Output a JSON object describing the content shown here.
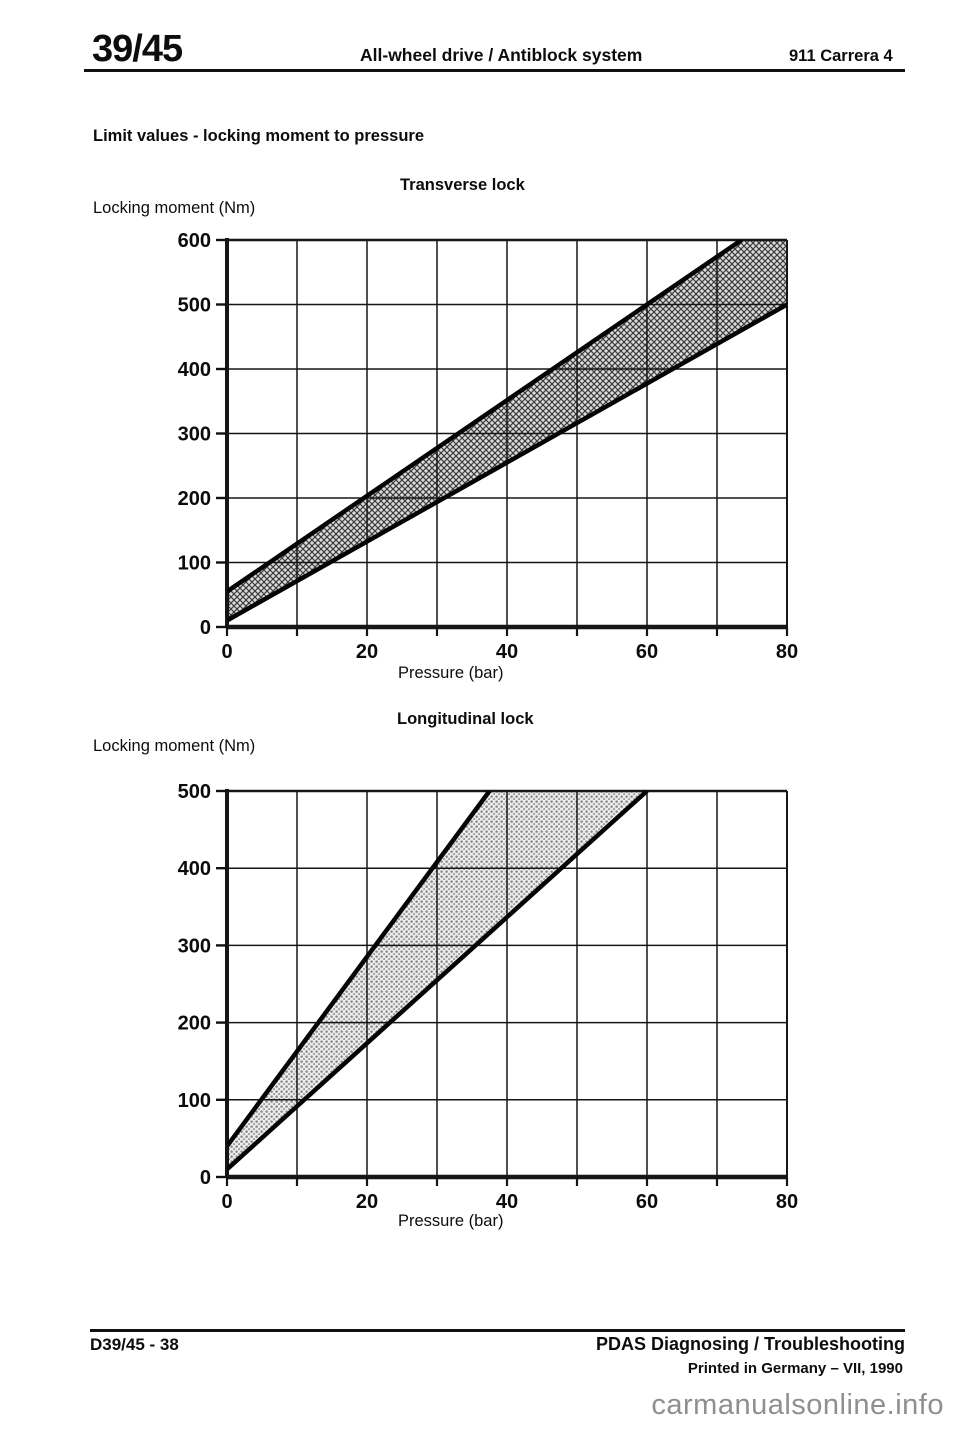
{
  "header": {
    "section_number": "39/45",
    "title": "All-wheel drive / Antiblock system",
    "model": "911 Carrera 4"
  },
  "heading": "Limit values - locking moment to pressure",
  "chart_data": [
    {
      "type": "area",
      "title": "Transverse lock",
      "ylabel": "Locking moment (Nm)",
      "xlabel": "Pressure (bar)",
      "xlim": [
        0,
        80
      ],
      "ylim": [
        0,
        600
      ],
      "xticks": [
        0,
        20,
        40,
        60,
        80
      ],
      "yticks": [
        0,
        100,
        200,
        300,
        400,
        500,
        600
      ],
      "xgrid_step": 10,
      "ygrid_step": 100,
      "grid": true,
      "legend": "none",
      "band": {
        "description": "permissible locking-moment band (hatched)",
        "fill_style": "crosshatch",
        "lower_edge": [
          [
            0,
            10
          ],
          [
            80,
            500
          ]
        ],
        "upper_edge": [
          [
            0,
            55
          ],
          [
            73.5,
            600
          ]
        ],
        "polygon": [
          [
            0,
            10
          ],
          [
            80,
            500
          ],
          [
            80,
            600
          ],
          [
            73.5,
            600
          ],
          [
            0,
            55
          ]
        ]
      }
    },
    {
      "type": "area",
      "title": "Longitudinal lock",
      "ylabel": "Locking moment (Nm)",
      "xlabel": "Pressure (bar)",
      "xlim": [
        0,
        80
      ],
      "ylim": [
        0,
        500
      ],
      "xticks": [
        0,
        20,
        40,
        60,
        80
      ],
      "yticks": [
        0,
        100,
        200,
        300,
        400,
        500
      ],
      "xgrid_step": 10,
      "ygrid_step": 100,
      "grid": true,
      "legend": "none",
      "band": {
        "description": "permissible locking-moment band (dotted)",
        "fill_style": "dots",
        "lower_edge": [
          [
            0,
            10
          ],
          [
            60,
            500
          ]
        ],
        "upper_edge": [
          [
            0,
            40
          ],
          [
            37.5,
            500
          ]
        ],
        "polygon": [
          [
            0,
            10
          ],
          [
            60,
            500
          ],
          [
            37.5,
            500
          ],
          [
            0,
            40
          ]
        ]
      }
    }
  ],
  "footer": {
    "doc_number": "D39/45 - 38",
    "title": "PDAS Diagnosing / Troubleshooting",
    "printed": "Printed in Germany – VII, 1990"
  },
  "watermark": "carmanualsonline.info"
}
